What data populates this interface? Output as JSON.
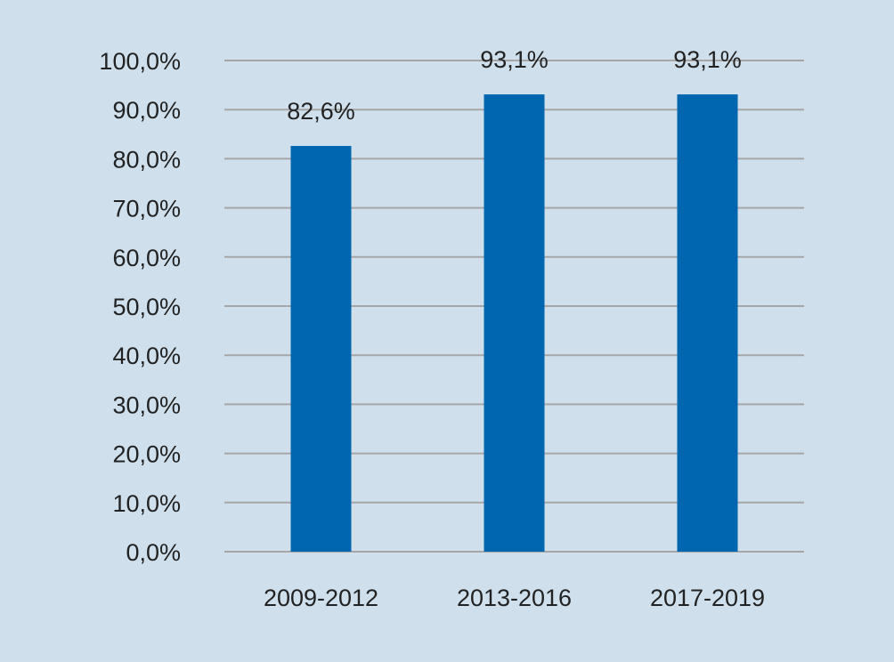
{
  "chart_data": {
    "type": "bar",
    "title": "",
    "xlabel": "",
    "ylabel": "",
    "categories": [
      "2009-2012",
      "2013-2016",
      "2017-2019"
    ],
    "values": [
      82.6,
      93.1,
      93.1
    ],
    "data_labels": [
      "82,6%",
      "93,1%",
      "93,1%"
    ],
    "ylim": [
      0,
      100
    ],
    "yticks": [
      0,
      10,
      20,
      30,
      40,
      50,
      60,
      70,
      80,
      90,
      100
    ],
    "ytick_labels": [
      "0,0%",
      "10,0%",
      "20,0%",
      "30,0%",
      "40,0%",
      "50,0%",
      "60,0%",
      "70,0%",
      "80,0%",
      "90,0%",
      "100,0%"
    ],
    "grid": true,
    "legend": "none",
    "bar_color": "#0066b0",
    "background_color": "#cfe0ec"
  }
}
